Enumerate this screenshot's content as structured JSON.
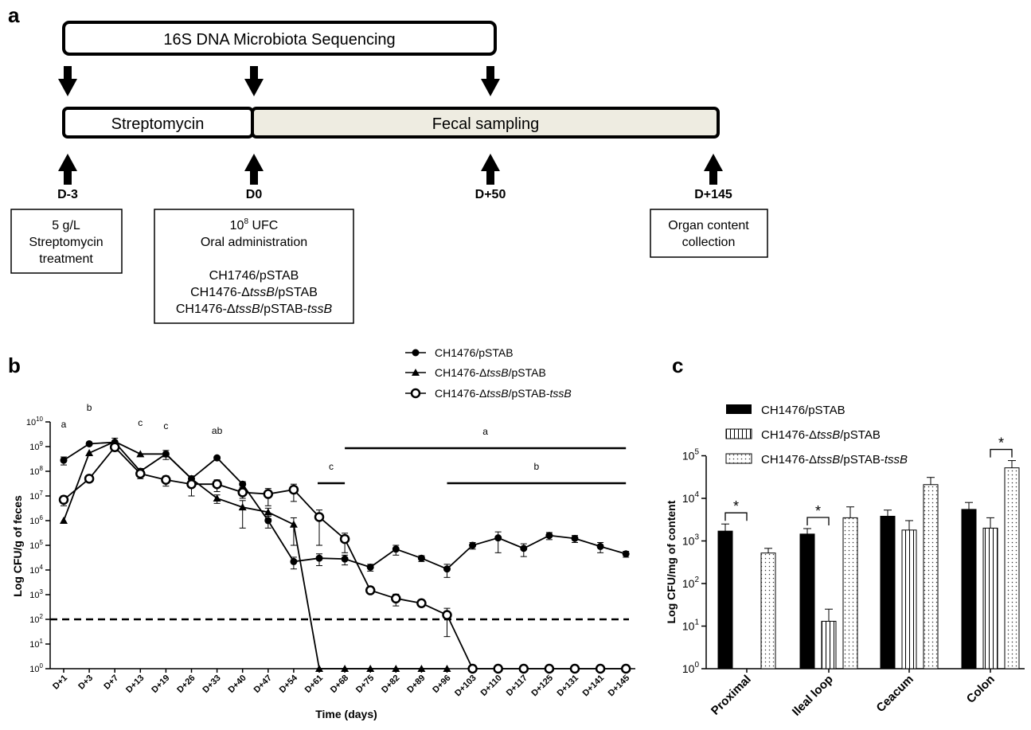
{
  "panel_a": {
    "label": "a",
    "sequencing_label": "16S DNA Microbiota Sequencing",
    "streptomycin_label": "Streptomycin",
    "fecal_label": "Fecal sampling",
    "fecal_fill": "#eeece1",
    "timepoints": [
      "D-3",
      "D0",
      "D+50",
      "D+145"
    ],
    "box1": [
      "5 g/L",
      "Streptomycin",
      "treatment"
    ],
    "box2": {
      "dose_base": "10",
      "dose_exp": "8",
      "dose_unit": " UFC",
      "route": "Oral administration",
      "strain1": "CH1746/pSTAB",
      "strain2_pre": "CH1476-Δ",
      "strain2_italic": "tssB",
      "strain2_post": "/pSTAB",
      "strain3_pre": "CH1476-Δ",
      "strain3_italic": "tssB",
      "strain3_mid": "/pSTAB-",
      "strain3_italic2": "tssB"
    },
    "box3": [
      "Organ content",
      "collection"
    ]
  },
  "panel_b": {
    "label": "b",
    "legend": [
      {
        "pre": "CH1476/pSTAB",
        "it": "",
        "post": "",
        "it2": "",
        "marker": "filled-circle"
      },
      {
        "pre": "CH1476-Δ",
        "it": "tssB",
        "post": "/pSTAB",
        "it2": "",
        "marker": "triangle"
      },
      {
        "pre": "CH1476-Δ",
        "it": "tssB",
        "post": "/pSTAB-",
        "it2": "tssB",
        "marker": "open-circle"
      }
    ],
    "group_letters": [
      "a",
      "b",
      "c",
      "c",
      "ab"
    ],
    "bracket_letters": [
      "a",
      "c",
      "b"
    ],
    "tick_exponents": [
      "0",
      "1",
      "2",
      "3",
      "4",
      "5",
      "6",
      "7",
      "8",
      "9",
      "10"
    ]
  },
  "panel_c": {
    "label": "c",
    "legend": [
      {
        "pre": "CH1476/pSTAB",
        "it": "",
        "post": "",
        "it2": "",
        "pattern": "solid"
      },
      {
        "pre": "CH1476-Δ",
        "it": "tssB",
        "post": "/pSTAB",
        "it2": "",
        "pattern": "vertical-stripes"
      },
      {
        "pre": "CH1476-Δ",
        "it": "tssB",
        "post": "/pSTAB-",
        "it2": "tssB",
        "pattern": "dots"
      }
    ],
    "tick_exponents": [
      "0",
      "1",
      "2",
      "3",
      "4",
      "5"
    ],
    "significance_mark": "*"
  },
  "chart_data": [
    {
      "type": "line",
      "title": "",
      "xlabel": "Time (days)",
      "ylabel": "Log CFU/g of feces",
      "yscale": "log",
      "ylim": [
        1,
        10000000000
      ],
      "grid": false,
      "legend_position": "top-right",
      "categories": [
        "D+1",
        "D+3",
        "D+7",
        "D+13",
        "D+19",
        "D+26",
        "D+33",
        "D+40",
        "D+47",
        "D+54",
        "D+61",
        "D+68",
        "D+75",
        "D+82",
        "D+89",
        "D+96",
        "D+103",
        "D+110",
        "D+117",
        "D+125",
        "D+131",
        "D+141",
        "D+145"
      ],
      "detection_limit": 100,
      "series": [
        {
          "name": "CH1476/pSTAB",
          "marker": "filled-circle",
          "values": [
            280000000,
            1300000000,
            1500000000,
            100000000,
            500000000,
            50000000,
            350000000,
            30000000,
            1000000,
            22000,
            30000,
            28000,
            13000,
            70000,
            30000,
            11000,
            100000,
            200000,
            75000,
            250000,
            190000,
            90000,
            45000
          ],
          "errors": [
            100000000,
            100000000,
            700000000,
            30000000,
            200000000,
            15000000,
            50000000,
            8000000,
            500000,
            11000,
            15000,
            12000,
            4000,
            30000,
            8000,
            6000,
            30000,
            150000,
            40000,
            80000,
            60000,
            40000,
            12000
          ]
        },
        {
          "name": "CH1476-ΔtssB/pSTAB",
          "marker": "triangle",
          "values": [
            1000000,
            550000000,
            1600000000,
            500000000,
            500000000,
            50000000,
            8000000,
            3500000,
            2200000,
            700000,
            1,
            1,
            1,
            1,
            1,
            1,
            null,
            null,
            null,
            null,
            null,
            null,
            null
          ],
          "errors": [
            null,
            null,
            null,
            null,
            null,
            null,
            3000000,
            3000000,
            1000000,
            600000,
            null,
            null,
            null,
            null,
            null,
            null,
            null,
            null,
            null,
            null,
            null,
            null,
            null
          ]
        },
        {
          "name": "CH1476-ΔtssB/pSTAB-tssB",
          "marker": "open-circle",
          "values": [
            7000000,
            50000000,
            950000000,
            80000000,
            45000000,
            30000000,
            30000000,
            14000000,
            12000000,
            18000000,
            1400000,
            180000,
            1500,
            700,
            450,
            150,
            1,
            1,
            1,
            1,
            1,
            1,
            1
          ],
          "errors": [
            3000000,
            10000000,
            300000000,
            30000000,
            20000000,
            20000000,
            15000000,
            6000000,
            8000000,
            12000000,
            1300000,
            130000,
            300,
            350,
            100,
            130,
            null,
            null,
            null,
            null,
            null,
            null,
            null
          ]
        }
      ],
      "annotations": [
        {
          "category": "D+1",
          "text": "a"
        },
        {
          "category": "D+3",
          "text": "b"
        },
        {
          "category": "D+13",
          "text": "c"
        },
        {
          "category": "D+19",
          "text": "c"
        },
        {
          "category": "D+33",
          "text": "ab"
        },
        {
          "from": "D+68",
          "to": "D+145",
          "text": "a"
        },
        {
          "from": "D+61",
          "to": "D+68",
          "text": "c"
        },
        {
          "from": "D+96",
          "to": "D+145",
          "text": "b"
        }
      ]
    },
    {
      "type": "bar",
      "title": "",
      "xlabel": "",
      "ylabel": "Log CFU/mg of content",
      "yscale": "log",
      "ylim": [
        1,
        100000
      ],
      "grid": false,
      "legend_position": "top",
      "categories": [
        "Proximal",
        "Ileal loop",
        "Ceacum",
        "Colon"
      ],
      "series": [
        {
          "name": "CH1476/pSTAB",
          "pattern": "solid",
          "values": [
            1700,
            1450,
            3800,
            5500
          ],
          "errors": [
            800,
            500,
            1500,
            2500
          ]
        },
        {
          "name": "CH1476-ΔtssB/pSTAB",
          "pattern": "vertical-stripes",
          "values": [
            1,
            13,
            1800,
            2000
          ],
          "errors": [
            null,
            12,
            1200,
            1500
          ]
        },
        {
          "name": "CH1476-ΔtssB/pSTAB-tssB",
          "pattern": "dots",
          "values": [
            520,
            3500,
            21000,
            52000
          ],
          "errors": [
            150,
            2800,
            10000,
            25000
          ]
        }
      ],
      "significance": [
        {
          "category": "Proximal",
          "between": [
            "CH1476/pSTAB",
            "CH1476-ΔtssB/pSTAB"
          ],
          "text": "*"
        },
        {
          "category": "Ileal loop",
          "between": [
            "CH1476/pSTAB",
            "CH1476-ΔtssB/pSTAB"
          ],
          "text": "*"
        },
        {
          "category": "Colon",
          "between": [
            "CH1476-ΔtssB/pSTAB",
            "CH1476-ΔtssB/pSTAB-tssB"
          ],
          "text": "*"
        }
      ]
    }
  ]
}
